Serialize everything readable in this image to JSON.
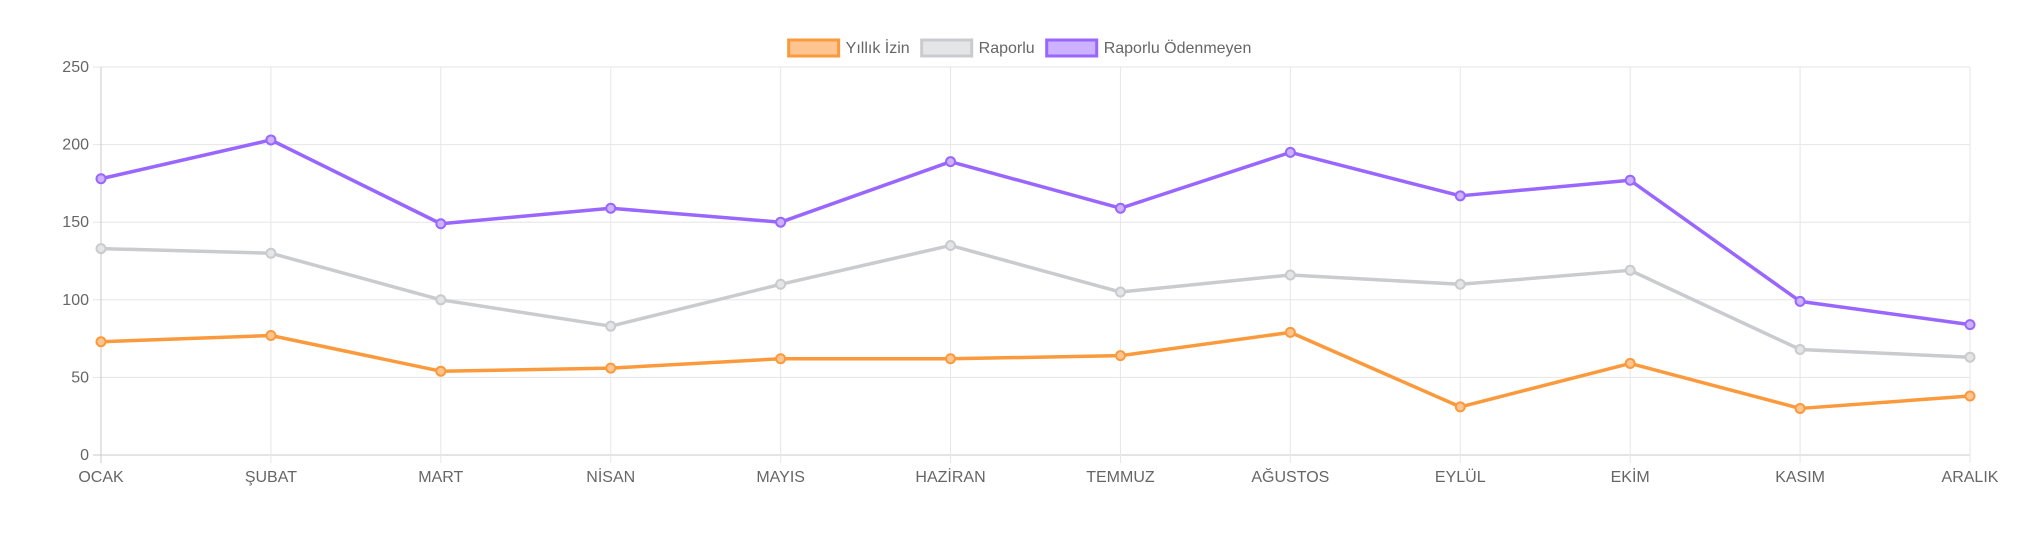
{
  "chart_data": {
    "type": "line",
    "categories": [
      "OCAK",
      "ŞUBAT",
      "MART",
      "NİSAN",
      "MAYIS",
      "HAZİRAN",
      "TEMMUZ",
      "AĞUSTOS",
      "EYLÜL",
      "EKİM",
      "KASIM",
      "ARALIK"
    ],
    "series": [
      {
        "name": "Yıllık İzin",
        "color": "#fb9a3c",
        "fill": "#ffc591",
        "values": [
          73,
          77,
          54,
          56,
          62,
          62,
          64,
          79,
          31,
          59,
          30,
          38
        ]
      },
      {
        "name": "Raporlu",
        "color": "#c9cbcf",
        "fill": "#e4e5e7",
        "values": [
          133,
          130,
          100,
          83,
          110,
          135,
          105,
          116,
          110,
          119,
          68,
          63
        ]
      },
      {
        "name": "Raporlu Ödenmeyen",
        "color": "#9966ff",
        "fill": "#ccb2ff",
        "values": [
          178,
          203,
          149,
          159,
          150,
          189,
          159,
          195,
          167,
          177,
          99,
          84
        ]
      }
    ],
    "ylim": [
      0,
      250
    ],
    "yticks": [
      0,
      50,
      100,
      150,
      200,
      250
    ],
    "grid": true,
    "legend_position": "top-center"
  }
}
